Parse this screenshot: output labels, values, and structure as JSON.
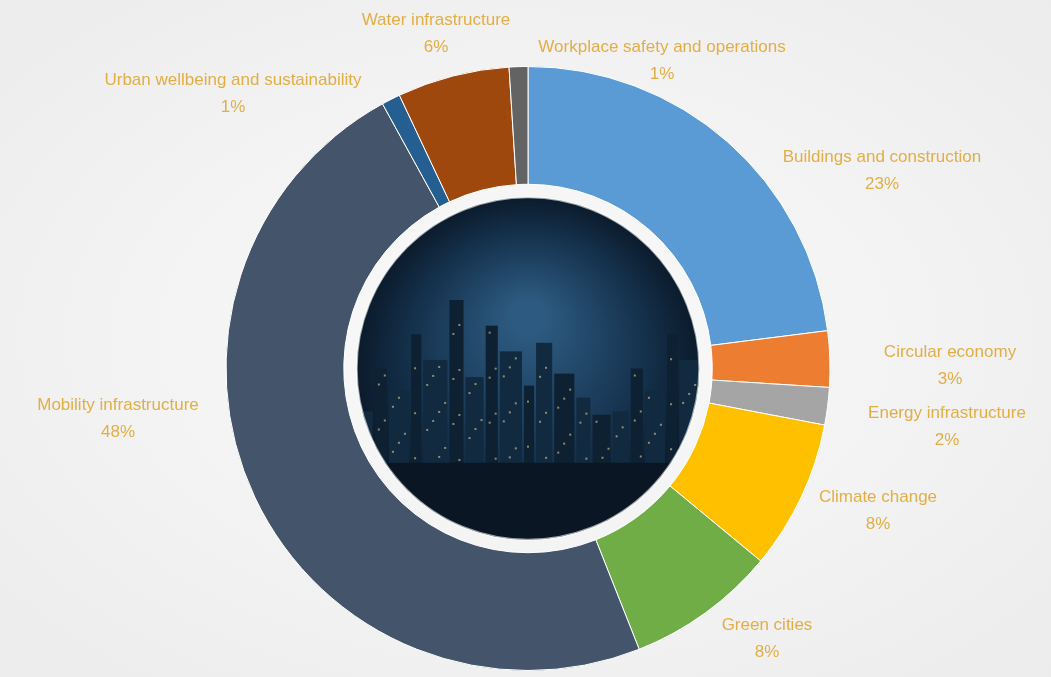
{
  "chart_data": {
    "type": "doughnut",
    "categories": [
      "Buildings and construction",
      "Circular economy",
      "Energy infrastructure",
      "Climate change",
      "Green cities",
      "Mobility infrastructure",
      "Urban wellbeing and sustainability",
      "Water infrastructure",
      "Workplace safety and operations"
    ],
    "values": [
      23,
      3,
      2,
      8,
      8,
      48,
      1,
      6,
      1
    ],
    "value_labels": [
      "23%",
      "3%",
      "2%",
      "8%",
      "8%",
      "48%",
      "1%",
      "6%",
      "1%"
    ],
    "colors": [
      "#5B9BD5",
      "#ED7D31",
      "#A5A5A5",
      "#FFC000",
      "#70AD47",
      "#44546A",
      "#255E91",
      "#9E480E",
      "#636363"
    ],
    "data_labels": true
  }
}
